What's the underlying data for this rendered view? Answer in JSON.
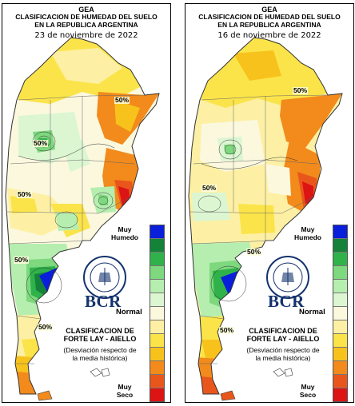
{
  "panels": [
    {
      "org": "GEA",
      "title_line1": "CLASIFICACION DE HUMEDAD DEL SUELO",
      "title_line2": "EN LA REPUBLICA ARGENTINA",
      "date": "23 de noviembre de 2022",
      "contour_labels": [
        "50%",
        "50%",
        "50%",
        "50%",
        "50%"
      ]
    },
    {
      "org": "GEA",
      "title_line1": "CLASIFICACION DE HUMEDAD DEL SUELO",
      "title_line2": "EN LA REPUBLICA ARGENTINA",
      "date": "16 de noviembre de 2022",
      "contour_labels": [
        "50%",
        "50%",
        "50%",
        "50%"
      ]
    }
  ],
  "legend": {
    "top_line1": "Muy",
    "top_line2": "Humedo",
    "middle": "Normal",
    "bottom_line1": "Muy",
    "bottom_line2": "Seco",
    "scale_colors": [
      "#0a1fd9",
      "#15823a",
      "#2fb24a",
      "#7ed87e",
      "#b6eeb0",
      "#dcf6d2",
      "#fbf8de",
      "#fdf0a4",
      "#fbe44a",
      "#f8c21c",
      "#f28a1c",
      "#e9561c",
      "#dc1414"
    ]
  },
  "logo_text": "BCR",
  "classification": {
    "title_line1": "CLASIFICACION DE",
    "title_line2": "FORTE LAY - AIELLO",
    "subtitle_line1": "(Desviación respecto de",
    "subtitle_line2": "la media histórica)"
  },
  "colors": {
    "very_wet": "#0a1fd9",
    "wet_dark": "#15823a",
    "wet": "#2fb24a",
    "wet_light": "#7ed87e",
    "normal": "#fbf8de",
    "dry_light": "#fbe44a",
    "dry": "#f28a1c",
    "very_dry": "#dc1414"
  }
}
